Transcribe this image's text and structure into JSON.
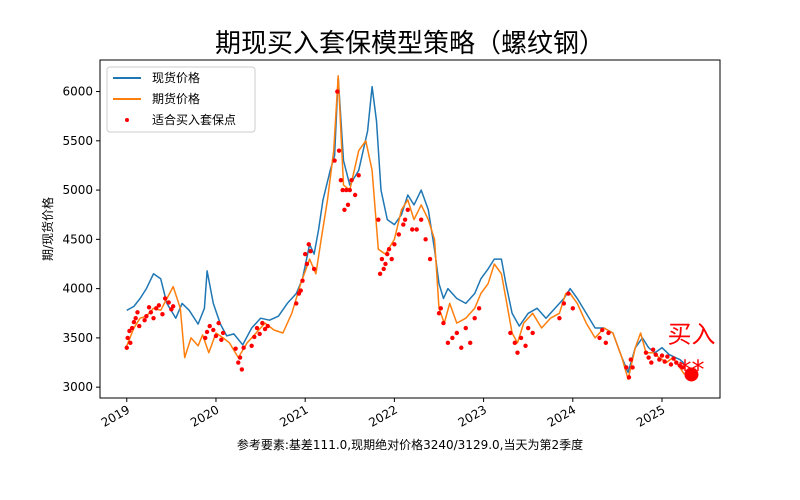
{
  "chart_data": {
    "type": "line",
    "title": "期现买入套保模型策略（螺纹钢）",
    "ylabel": "期/现货价格",
    "xlabel": "参考要素:基差111.0,现期绝对价格3240/3129.0,当天为第2季度",
    "x_ticks": [
      "2019",
      "2020",
      "2021",
      "2022",
      "2023",
      "2024",
      "2025"
    ],
    "y_ticks": [
      3000,
      3500,
      4000,
      4500,
      5000,
      5500,
      6000
    ],
    "x_range": [
      2018.7,
      2025.65
    ],
    "ylim": [
      2890,
      6320
    ],
    "grid": false,
    "legend_position": "top-left",
    "colors": {
      "spot": "#1f77b4",
      "futures": "#ff7f0e",
      "signal": "#ff0000"
    },
    "series": [
      {
        "name": "现货价格",
        "key": "spot",
        "points": [
          [
            2019.0,
            3780
          ],
          [
            2019.08,
            3820
          ],
          [
            2019.15,
            3900
          ],
          [
            2019.22,
            4000
          ],
          [
            2019.3,
            4150
          ],
          [
            2019.38,
            4100
          ],
          [
            2019.45,
            3850
          ],
          [
            2019.55,
            3700
          ],
          [
            2019.62,
            3850
          ],
          [
            2019.7,
            3780
          ],
          [
            2019.8,
            3640
          ],
          [
            2019.87,
            3800
          ],
          [
            2019.9,
            4180
          ],
          [
            2019.97,
            3850
          ],
          [
            2020.05,
            3640
          ],
          [
            2020.12,
            3520
          ],
          [
            2020.2,
            3540
          ],
          [
            2020.3,
            3430
          ],
          [
            2020.4,
            3600
          ],
          [
            2020.5,
            3700
          ],
          [
            2020.6,
            3680
          ],
          [
            2020.7,
            3720
          ],
          [
            2020.8,
            3850
          ],
          [
            2020.9,
            3950
          ],
          [
            2020.97,
            4100
          ],
          [
            2021.05,
            4450
          ],
          [
            2021.1,
            4350
          ],
          [
            2021.15,
            4600
          ],
          [
            2021.2,
            4900
          ],
          [
            2021.28,
            5200
          ],
          [
            2021.33,
            5350
          ],
          [
            2021.37,
            6150
          ],
          [
            2021.43,
            5300
          ],
          [
            2021.5,
            5050
          ],
          [
            2021.6,
            5200
          ],
          [
            2021.7,
            5600
          ],
          [
            2021.75,
            6050
          ],
          [
            2021.8,
            5700
          ],
          [
            2021.85,
            5000
          ],
          [
            2021.92,
            4700
          ],
          [
            2022.0,
            4650
          ],
          [
            2022.08,
            4750
          ],
          [
            2022.15,
            4950
          ],
          [
            2022.22,
            4850
          ],
          [
            2022.3,
            5000
          ],
          [
            2022.38,
            4800
          ],
          [
            2022.45,
            4400
          ],
          [
            2022.5,
            4050
          ],
          [
            2022.55,
            3900
          ],
          [
            2022.6,
            4000
          ],
          [
            2022.7,
            3900
          ],
          [
            2022.8,
            3850
          ],
          [
            2022.9,
            3950
          ],
          [
            2022.97,
            4100
          ],
          [
            2023.05,
            4200
          ],
          [
            2023.12,
            4300
          ],
          [
            2023.2,
            4300
          ],
          [
            2023.25,
            4050
          ],
          [
            2023.32,
            3750
          ],
          [
            2023.4,
            3620
          ],
          [
            2023.5,
            3750
          ],
          [
            2023.6,
            3800
          ],
          [
            2023.7,
            3700
          ],
          [
            2023.8,
            3800
          ],
          [
            2023.9,
            3900
          ],
          [
            2023.97,
            4000
          ],
          [
            2024.05,
            3900
          ],
          [
            2024.15,
            3750
          ],
          [
            2024.25,
            3600
          ],
          [
            2024.35,
            3600
          ],
          [
            2024.45,
            3550
          ],
          [
            2024.55,
            3300
          ],
          [
            2024.62,
            3150
          ],
          [
            2024.7,
            3400
          ],
          [
            2024.78,
            3500
          ],
          [
            2024.85,
            3400
          ],
          [
            2024.92,
            3350
          ],
          [
            2025.0,
            3400
          ],
          [
            2025.08,
            3330
          ],
          [
            2025.15,
            3300
          ],
          [
            2025.2,
            3280
          ],
          [
            2025.25,
            3240
          ]
        ]
      },
      {
        "name": "期货价格",
        "key": "futures",
        "points": [
          [
            2019.0,
            3420
          ],
          [
            2019.08,
            3600
          ],
          [
            2019.15,
            3700
          ],
          [
            2019.22,
            3720
          ],
          [
            2019.3,
            3800
          ],
          [
            2019.38,
            3780
          ],
          [
            2019.45,
            3900
          ],
          [
            2019.52,
            4020
          ],
          [
            2019.6,
            3800
          ],
          [
            2019.65,
            3300
          ],
          [
            2019.72,
            3500
          ],
          [
            2019.8,
            3420
          ],
          [
            2019.85,
            3530
          ],
          [
            2019.92,
            3350
          ],
          [
            2020.0,
            3550
          ],
          [
            2020.08,
            3500
          ],
          [
            2020.15,
            3450
          ],
          [
            2020.25,
            3300
          ],
          [
            2020.35,
            3450
          ],
          [
            2020.45,
            3550
          ],
          [
            2020.55,
            3650
          ],
          [
            2020.65,
            3580
          ],
          [
            2020.75,
            3550
          ],
          [
            2020.85,
            3750
          ],
          [
            2020.95,
            4050
          ],
          [
            2021.05,
            4300
          ],
          [
            2021.12,
            4150
          ],
          [
            2021.18,
            4500
          ],
          [
            2021.25,
            4900
          ],
          [
            2021.32,
            5400
          ],
          [
            2021.37,
            6160
          ],
          [
            2021.43,
            5050
          ],
          [
            2021.5,
            5000
          ],
          [
            2021.6,
            5400
          ],
          [
            2021.68,
            5500
          ],
          [
            2021.75,
            5200
          ],
          [
            2021.82,
            4400
          ],
          [
            2021.9,
            4350
          ],
          [
            2022.0,
            4500
          ],
          [
            2022.08,
            4800
          ],
          [
            2022.15,
            4900
          ],
          [
            2022.22,
            4700
          ],
          [
            2022.3,
            4850
          ],
          [
            2022.38,
            4700
          ],
          [
            2022.45,
            4500
          ],
          [
            2022.5,
            3800
          ],
          [
            2022.56,
            3650
          ],
          [
            2022.62,
            3850
          ],
          [
            2022.7,
            3650
          ],
          [
            2022.8,
            3700
          ],
          [
            2022.9,
            3800
          ],
          [
            2022.97,
            3950
          ],
          [
            2023.05,
            4050
          ],
          [
            2023.12,
            4250
          ],
          [
            2023.2,
            4150
          ],
          [
            2023.25,
            3900
          ],
          [
            2023.32,
            3550
          ],
          [
            2023.38,
            3450
          ],
          [
            2023.45,
            3650
          ],
          [
            2023.55,
            3750
          ],
          [
            2023.65,
            3600
          ],
          [
            2023.75,
            3700
          ],
          [
            2023.85,
            3750
          ],
          [
            2023.92,
            3950
          ],
          [
            2023.97,
            3950
          ],
          [
            2024.05,
            3850
          ],
          [
            2024.15,
            3650
          ],
          [
            2024.25,
            3500
          ],
          [
            2024.35,
            3600
          ],
          [
            2024.45,
            3550
          ],
          [
            2024.55,
            3300
          ],
          [
            2024.62,
            3080
          ],
          [
            2024.7,
            3400
          ],
          [
            2024.76,
            3550
          ],
          [
            2024.82,
            3350
          ],
          [
            2024.9,
            3350
          ],
          [
            2024.97,
            3300
          ],
          [
            2025.05,
            3250
          ],
          [
            2025.12,
            3300
          ],
          [
            2025.2,
            3200
          ],
          [
            2025.25,
            3129
          ]
        ]
      },
      {
        "name": "适合买入套保点",
        "key": "signal",
        "points": [
          [
            2019.0,
            3400
          ],
          [
            2019.01,
            3500
          ],
          [
            2019.03,
            3570
          ],
          [
            2019.04,
            3450
          ],
          [
            2019.06,
            3600
          ],
          [
            2019.08,
            3660
          ],
          [
            2019.1,
            3700
          ],
          [
            2019.12,
            3760
          ],
          [
            2019.14,
            3620
          ],
          [
            2019.2,
            3680
          ],
          [
            2019.22,
            3720
          ],
          [
            2019.25,
            3810
          ],
          [
            2019.27,
            3760
          ],
          [
            2019.3,
            3700
          ],
          [
            2019.33,
            3800
          ],
          [
            2019.36,
            3830
          ],
          [
            2019.4,
            3740
          ],
          [
            2019.43,
            3900
          ],
          [
            2019.47,
            3860
          ],
          [
            2019.5,
            3790
          ],
          [
            2019.52,
            3820
          ],
          [
            2019.88,
            3500
          ],
          [
            2019.9,
            3560
          ],
          [
            2019.93,
            3620
          ],
          [
            2019.97,
            3580
          ],
          [
            2020.0,
            3520
          ],
          [
            2020.03,
            3650
          ],
          [
            2020.06,
            3480
          ],
          [
            2020.08,
            3550
          ],
          [
            2020.22,
            3390
          ],
          [
            2020.25,
            3250
          ],
          [
            2020.27,
            3300
          ],
          [
            2020.29,
            3180
          ],
          [
            2020.31,
            3400
          ],
          [
            2020.4,
            3420
          ],
          [
            2020.43,
            3510
          ],
          [
            2020.46,
            3600
          ],
          [
            2020.49,
            3540
          ],
          [
            2020.52,
            3650
          ],
          [
            2020.55,
            3590
          ],
          [
            2020.58,
            3620
          ],
          [
            2020.9,
            3850
          ],
          [
            2020.93,
            3950
          ],
          [
            2020.95,
            3980
          ],
          [
            2020.97,
            4080
          ],
          [
            2021.0,
            4350
          ],
          [
            2021.02,
            4250
          ],
          [
            2021.04,
            4450
          ],
          [
            2021.06,
            4380
          ],
          [
            2021.1,
            4200
          ],
          [
            2021.33,
            5300
          ],
          [
            2021.36,
            6000
          ],
          [
            2021.38,
            5400
          ],
          [
            2021.4,
            5100
          ],
          [
            2021.42,
            5000
          ],
          [
            2021.44,
            4800
          ],
          [
            2021.46,
            5000
          ],
          [
            2021.48,
            4850
          ],
          [
            2021.5,
            5000
          ],
          [
            2021.52,
            5100
          ],
          [
            2021.56,
            4950
          ],
          [
            2021.6,
            5150
          ],
          [
            2021.82,
            4700
          ],
          [
            2021.84,
            4150
          ],
          [
            2021.86,
            4300
          ],
          [
            2021.88,
            4200
          ],
          [
            2021.9,
            4250
          ],
          [
            2021.92,
            4350
          ],
          [
            2021.94,
            4400
          ],
          [
            2021.97,
            4300
          ],
          [
            2022.0,
            4450
          ],
          [
            2022.05,
            4550
          ],
          [
            2022.1,
            4650
          ],
          [
            2022.12,
            4700
          ],
          [
            2022.15,
            4800
          ],
          [
            2022.2,
            4600
          ],
          [
            2022.25,
            4600
          ],
          [
            2022.3,
            4700
          ],
          [
            2022.35,
            4500
          ],
          [
            2022.4,
            4300
          ],
          [
            2022.5,
            3750
          ],
          [
            2022.52,
            3800
          ],
          [
            2022.55,
            3650
          ],
          [
            2022.6,
            3450
          ],
          [
            2022.65,
            3500
          ],
          [
            2022.7,
            3550
          ],
          [
            2022.75,
            3400
          ],
          [
            2022.8,
            3600
          ],
          [
            2022.85,
            3450
          ],
          [
            2022.9,
            3700
          ],
          [
            2022.95,
            3800
          ],
          [
            2023.3,
            3550
          ],
          [
            2023.35,
            3450
          ],
          [
            2023.38,
            3350
          ],
          [
            2023.42,
            3500
          ],
          [
            2023.47,
            3420
          ],
          [
            2023.5,
            3600
          ],
          [
            2023.55,
            3550
          ],
          [
            2023.85,
            3700
          ],
          [
            2023.9,
            3850
          ],
          [
            2023.95,
            3950
          ],
          [
            2024.0,
            3800
          ],
          [
            2024.3,
            3500
          ],
          [
            2024.33,
            3580
          ],
          [
            2024.37,
            3450
          ],
          [
            2024.4,
            3550
          ],
          [
            2024.6,
            3200
          ],
          [
            2024.63,
            3100
          ],
          [
            2024.65,
            3280
          ],
          [
            2024.67,
            3200
          ],
          [
            2024.82,
            3350
          ],
          [
            2024.85,
            3300
          ],
          [
            2024.88,
            3250
          ],
          [
            2024.9,
            3380
          ],
          [
            2024.93,
            3330
          ],
          [
            2024.97,
            3280
          ],
          [
            2025.0,
            3320
          ],
          [
            2025.03,
            3260
          ],
          [
            2025.06,
            3310
          ],
          [
            2025.1,
            3230
          ],
          [
            2025.13,
            3290
          ],
          [
            2025.16,
            3250
          ],
          [
            2025.2,
            3220
          ],
          [
            2025.23,
            3200
          ]
        ]
      }
    ],
    "latest_marker": {
      "x": 2025.33,
      "y": 3129,
      "label": "买入",
      "stars": "**"
    }
  }
}
